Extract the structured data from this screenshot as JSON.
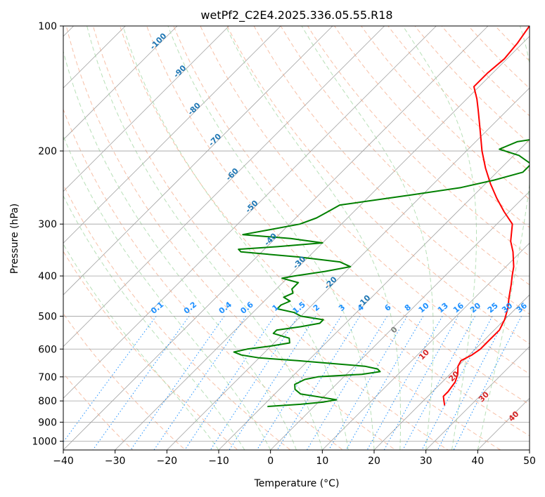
{
  "chart_data": {
    "type": "line",
    "title": "wetPf2_C2E4.2025.336.05.55.R18",
    "xlabel": "Temperature (°C)",
    "ylabel": "Pressure (hPa)",
    "xlim": [
      -40,
      50
    ],
    "ylim": [
      1050,
      100
    ],
    "y_scale": "log",
    "x_ticks": [
      -40,
      -30,
      -20,
      -10,
      0,
      10,
      20,
      30,
      40,
      50
    ],
    "y_ticks": [
      100,
      200,
      300,
      400,
      500,
      600,
      700,
      800,
      900,
      1000
    ],
    "grid": true,
    "legend": "none",
    "skew": "skew-T",
    "series": [
      {
        "color": "#ff0000",
        "points": [
          {
            "p": 820,
            "t": 25
          },
          {
            "p": 800,
            "t": 24
          },
          {
            "p": 780,
            "t": 23
          },
          {
            "p": 760,
            "t": 23
          },
          {
            "p": 720,
            "t": 22.5
          },
          {
            "p": 690,
            "t": 21.5
          },
          {
            "p": 660,
            "t": 20
          },
          {
            "p": 640,
            "t": 19.5
          },
          {
            "p": 620,
            "t": 20.5
          },
          {
            "p": 600,
            "t": 21
          },
          {
            "p": 580,
            "t": 21
          },
          {
            "p": 540,
            "t": 21
          },
          {
            "p": 510,
            "t": 20
          },
          {
            "p": 480,
            "t": 18.5
          },
          {
            "p": 450,
            "t": 16.5
          },
          {
            "p": 420,
            "t": 14.5
          },
          {
            "p": 400,
            "t": 13
          },
          {
            "p": 380,
            "t": 11.5
          },
          {
            "p": 350,
            "t": 8.5
          },
          {
            "p": 330,
            "t": 6
          },
          {
            "p": 300,
            "t": 3
          },
          {
            "p": 280,
            "t": -1
          },
          {
            "p": 260,
            "t": -5
          },
          {
            "p": 240,
            "t": -9
          },
          {
            "p": 220,
            "t": -13
          },
          {
            "p": 200,
            "t": -17
          },
          {
            "p": 180,
            "t": -21
          },
          {
            "p": 160,
            "t": -25.5
          },
          {
            "p": 150,
            "t": -28
          },
          {
            "p": 140,
            "t": -31
          },
          {
            "p": 130,
            "t": -31
          },
          {
            "p": 120,
            "t": -30.5
          },
          {
            "p": 110,
            "t": -31
          },
          {
            "p": 100,
            "t": -32
          }
        ]
      },
      {
        "color": "#008000",
        "points": [
          {
            "p": 825,
            "t": -9
          },
          {
            "p": 815,
            "t": -3
          },
          {
            "p": 805,
            "t": 1
          },
          {
            "p": 795,
            "t": 3
          },
          {
            "p": 785,
            "t": 0
          },
          {
            "p": 770,
            "t": -5
          },
          {
            "p": 750,
            "t": -7
          },
          {
            "p": 730,
            "t": -8
          },
          {
            "p": 710,
            "t": -7
          },
          {
            "p": 700,
            "t": -5
          },
          {
            "p": 690,
            "t": 3
          },
          {
            "p": 680,
            "t": 6
          },
          {
            "p": 670,
            "t": 5
          },
          {
            "p": 660,
            "t": 2
          },
          {
            "p": 650,
            "t": -5
          },
          {
            "p": 640,
            "t": -12
          },
          {
            "p": 630,
            "t": -20
          },
          {
            "p": 620,
            "t": -24
          },
          {
            "p": 610,
            "t": -26
          },
          {
            "p": 600,
            "t": -24
          },
          {
            "p": 590,
            "t": -20
          },
          {
            "p": 580,
            "t": -17
          },
          {
            "p": 565,
            "t": -18
          },
          {
            "p": 550,
            "t": -22
          },
          {
            "p": 540,
            "t": -22
          },
          {
            "p": 530,
            "t": -18
          },
          {
            "p": 520,
            "t": -15
          },
          {
            "p": 510,
            "t": -15
          },
          {
            "p": 500,
            "t": -20
          },
          {
            "p": 490,
            "t": -22
          },
          {
            "p": 480,
            "t": -26
          },
          {
            "p": 470,
            "t": -26
          },
          {
            "p": 460,
            "t": -25
          },
          {
            "p": 450,
            "t": -27
          },
          {
            "p": 440,
            "t": -26
          },
          {
            "p": 430,
            "t": -27
          },
          {
            "p": 415,
            "t": -27
          },
          {
            "p": 405,
            "t": -31
          },
          {
            "p": 400,
            "t": -29
          },
          {
            "p": 390,
            "t": -24
          },
          {
            "p": 380,
            "t": -20
          },
          {
            "p": 370,
            "t": -23
          },
          {
            "p": 360,
            "t": -32
          },
          {
            "p": 350,
            "t": -44
          },
          {
            "p": 345,
            "t": -45
          },
          {
            "p": 340,
            "t": -38
          },
          {
            "p": 333,
            "t": -30
          },
          {
            "p": 325,
            "t": -37
          },
          {
            "p": 318,
            "t": -47
          },
          {
            "p": 310,
            "t": -43
          },
          {
            "p": 300,
            "t": -38
          },
          {
            "p": 290,
            "t": -36
          },
          {
            "p": 280,
            "t": -35
          },
          {
            "p": 270,
            "t": -34
          },
          {
            "p": 265,
            "t": -30
          },
          {
            "p": 255,
            "t": -22
          },
          {
            "p": 245,
            "t": -14
          },
          {
            "p": 235,
            "t": -9
          },
          {
            "p": 225,
            "t": -5
          },
          {
            "p": 215,
            "t": -5
          },
          {
            "p": 205,
            "t": -9
          },
          {
            "p": 198,
            "t": -14
          },
          {
            "p": 190,
            "t": -12
          },
          {
            "p": 182,
            "t": -4
          },
          {
            "p": 175,
            "t": -4
          },
          {
            "p": 168,
            "t": -9
          },
          {
            "p": 160,
            "t": -12
          },
          {
            "p": 150,
            "t": -12
          },
          {
            "p": 140,
            "t": -10
          },
          {
            "p": 130,
            "t": -8
          },
          {
            "p": 120,
            "t": -9
          },
          {
            "p": 110,
            "t": -10
          },
          {
            "p": 100,
            "t": -13
          }
        ]
      }
    ],
    "dry_adiabats": [
      -30,
      -20,
      -10,
      0,
      10,
      20,
      30,
      40,
      50,
      60,
      70,
      80,
      90,
      100,
      110,
      120,
      130,
      140,
      150,
      160,
      170,
      180
    ],
    "moist_adiabats": [
      -10,
      -5,
      0,
      5,
      10,
      15,
      20,
      25,
      30,
      35,
      40
    ],
    "mixing_ratio_lines": [
      "0.1",
      "0.2",
      "0.4",
      "0.6",
      "1",
      "1.5",
      "2",
      "3",
      "4",
      "6",
      "8",
      "10",
      "13",
      "16",
      "20",
      "25",
      "30",
      "36"
    ],
    "wetbulb_labels": [
      "-100",
      "-90",
      "-80",
      "-70",
      "-60",
      "-50",
      "-40",
      "-30",
      "-20",
      "-10"
    ],
    "wetbulb_label_pressures": [
      110,
      130,
      160,
      190,
      230,
      275,
      330,
      375,
      420,
      465
    ],
    "theta_e_labels": [
      "0",
      "10",
      "20",
      "30",
      "40"
    ],
    "theta_e_label_pressures": [
      545,
      625,
      705,
      790,
      880
    ]
  },
  "colors": {
    "temperature": "#ff0000",
    "dewpoint": "#008000",
    "dry_adiabat": "#f4a582",
    "moist_adiabat": "#a6d8a6",
    "mixing_ratio": "#1e90ff",
    "isotherm": "#8c8c8c",
    "isobar": "#a0a0a0",
    "wetbulb_label": "#1f77b4",
    "theta_e_label": "#d62728"
  }
}
